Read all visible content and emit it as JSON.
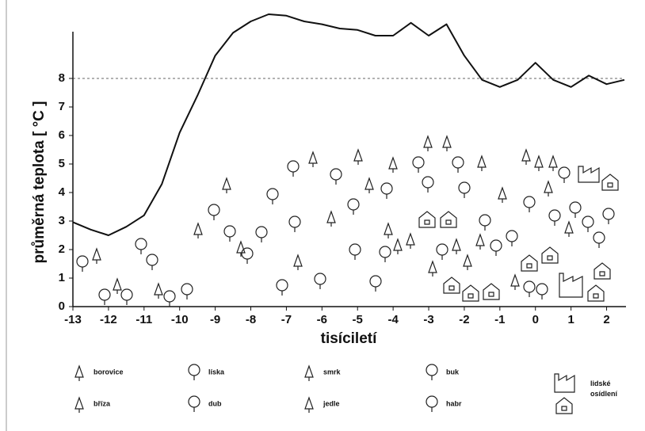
{
  "chart_data": {
    "type": "line",
    "xlabel": "tisíciletí",
    "ylabel": "průměrná teplota [ °C ]",
    "x": [
      -13,
      -12.5,
      -12,
      -11.5,
      -11,
      -10.5,
      -10,
      -9.5,
      -9,
      -8.5,
      -8,
      -7.5,
      -7,
      -6.5,
      -6,
      -5.5,
      -5,
      -4.5,
      -4,
      -3.5,
      -3,
      -2.5,
      -2,
      -1.5,
      -1,
      -0.5,
      0,
      0.5,
      1,
      1.5,
      2,
      2.5
    ],
    "series": [
      {
        "color": "#111111",
        "values": [
          2.96,
          2.7,
          2.5,
          2.8,
          3.2,
          4.3,
          6.1,
          7.4,
          8.8,
          9.6,
          10.0,
          10.25,
          10.2,
          10.0,
          9.9,
          9.75,
          9.7,
          9.5,
          9.5,
          9.95,
          9.5,
          9.9,
          8.8,
          7.95,
          7.7,
          7.95,
          8.55,
          7.95,
          7.7,
          8.1,
          7.8,
          7.95
        ]
      }
    ],
    "xlim": [
      -13,
      2.5
    ],
    "xticks": [
      -13,
      -12,
      -11,
      -10,
      -9,
      -8,
      -7,
      -6,
      -5,
      -4,
      -3,
      -2,
      -1,
      0,
      1,
      2
    ],
    "ylim": [
      0,
      10.5
    ],
    "yticks": [
      0,
      1,
      2,
      3,
      4,
      5,
      6,
      7,
      8
    ],
    "reference_line": 8,
    "legend": [
      "borovice",
      "bříza",
      "líska",
      "dub",
      "smrk",
      "jedle",
      "buk",
      "habr",
      "lidské osídlení"
    ]
  }
}
